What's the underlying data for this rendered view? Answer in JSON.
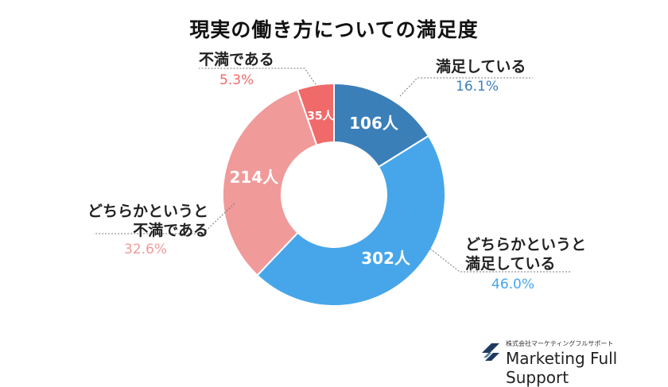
{
  "chart_data": {
    "type": "pie",
    "title": "現実の働き方についての満足度",
    "slices": [
      {
        "label": "満足している",
        "count": 106,
        "count_label": "106人",
        "percent": 16.1,
        "percent_label": "16.1%",
        "color": "#3B7FB9"
      },
      {
        "label": "どちらかというと\n満足している",
        "count": 302,
        "count_label": "302人",
        "percent": 46.0,
        "percent_label": "46.0%",
        "color": "#47A6EA"
      },
      {
        "label": "どちらかというと\n不満である",
        "count": 214,
        "count_label": "214人",
        "percent": 32.6,
        "percent_label": "32.6%",
        "color": "#F09A9A"
      },
      {
        "label": "不満である",
        "count": 35,
        "count_label": "35人",
        "percent": 5.3,
        "percent_label": "5.3%",
        "color": "#F06A6A"
      }
    ]
  },
  "labels": {
    "satisfied": "満足している",
    "somewhat_satisfied_1": "どちらかというと",
    "somewhat_satisfied_2": "満足している",
    "somewhat_dissatisfied_1": "どちらかというと",
    "somewhat_dissatisfied_2": "不満である",
    "dissatisfied": "不満である"
  },
  "brand": {
    "company_jp": "株式会社マーケティングフルサポート",
    "name": "Marketing Full Support",
    "color": "#1F3A60"
  }
}
